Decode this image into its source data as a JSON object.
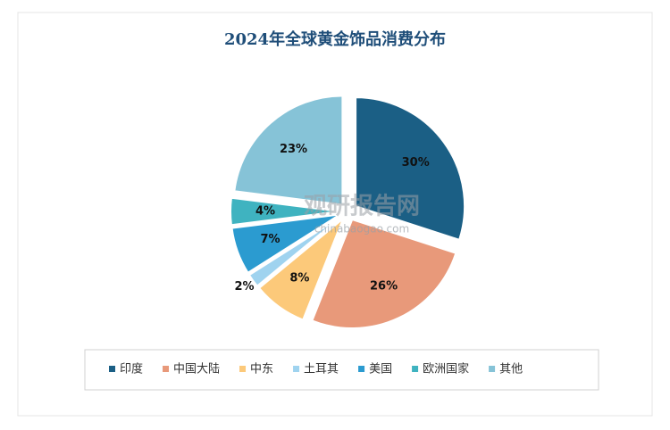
{
  "chart_data": {
    "type": "pie",
    "title": "2024年全球黄金饰品消费分布",
    "categories": [
      "印度",
      "中国大陆",
      "中东",
      "土耳其",
      "美国",
      "欧洲国家",
      "其他"
    ],
    "values": [
      30,
      26,
      8,
      2,
      7,
      4,
      23
    ],
    "value_labels": [
      "30%",
      "26%",
      "8%",
      "2%",
      "7%",
      "4%",
      "23%"
    ],
    "colors": [
      "#1b5f85",
      "#e8997a",
      "#fcc97a",
      "#9fd3ef",
      "#2b9bd0",
      "#3fb3c0",
      "#86c3d7"
    ],
    "legend": "bottom",
    "watermark": {
      "name": "观研报告网",
      "url": "chinabaogao.com"
    }
  }
}
